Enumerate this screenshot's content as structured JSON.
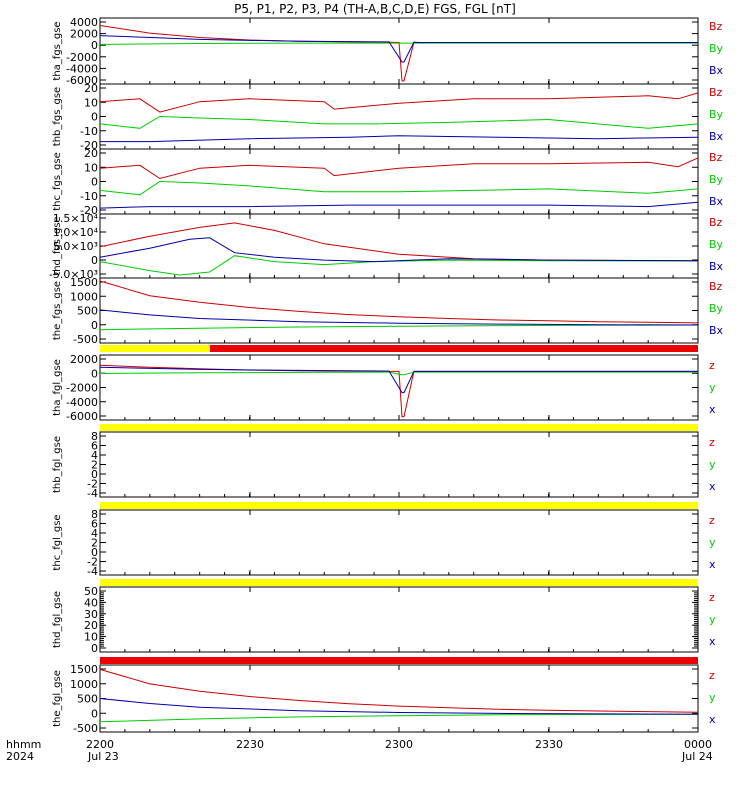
{
  "title": "P5, P1, P2, P3, P4 (TH-A,B,C,D,E) FGS, FGL [nT]",
  "colors": {
    "z": "#cc0000",
    "y": "#00cc00",
    "x": "#0000aa",
    "yellow": "#ffff00",
    "red": "#ee0000"
  },
  "time_axis": {
    "ticks": [
      "2200",
      "2230",
      "2300",
      "2330",
      "0000"
    ],
    "dates": [
      "Jul 23",
      "Jul 24"
    ],
    "hhmm_label": "hhmm",
    "year_label": "2024"
  },
  "panels": [
    {
      "ylabel": "tha_fgs_gse",
      "yticks": [
        "4000",
        "2000",
        "0",
        "-2000",
        "-4000",
        "-6000"
      ],
      "ylim": [
        -6500,
        4000
      ],
      "legend": [
        "Bz",
        "By",
        "Bx"
      ],
      "status_bar": null
    },
    {
      "ylabel": "thb_fgs_gse",
      "yticks": [
        "20",
        "10",
        "0",
        "-10",
        "-20"
      ],
      "ylim": [
        -22,
        22
      ],
      "legend": [
        "Bz",
        "By",
        "Bx"
      ],
      "status_bar": null
    },
    {
      "ylabel": "thc_fgs_gse",
      "yticks": [
        "20",
        "10",
        "0",
        "-10",
        "-20"
      ],
      "ylim": [
        -22,
        22
      ],
      "legend": [
        "Bz",
        "By",
        "Bx"
      ],
      "status_bar": null
    },
    {
      "ylabel": "thd_fgs_gse",
      "yticks": [
        "1.5×10⁴",
        "1.0×10⁴",
        "5.0×10³",
        "0",
        "-5.0×10³"
      ],
      "ylim": [
        -5500,
        16000
      ],
      "legend": [
        "Bz",
        "By",
        "Bx"
      ],
      "status_bar": null
    },
    {
      "ylabel": "the_fgs_gse",
      "yticks": [
        "1500",
        "1000",
        "500",
        "0",
        "-500"
      ],
      "ylim": [
        -600,
        1600
      ],
      "legend": [
        "Bz",
        "By",
        "Bx"
      ],
      "status_bar": null
    },
    {
      "ylabel": "tha_fgl_gse",
      "yticks": [
        "2000",
        "0",
        "-2000",
        "-4000",
        "-6000"
      ],
      "ylim": [
        -7000,
        2500
      ],
      "legend": [
        "z",
        "y",
        "x"
      ],
      "status_bar": "yellow-red"
    },
    {
      "ylabel": "thb_fgl_gse",
      "yticks": [
        "8",
        "6",
        "4",
        "2",
        "0",
        "-2",
        "-4"
      ],
      "ylim": [
        -5,
        9
      ],
      "legend": [
        "z",
        "y",
        "x"
      ],
      "status_bar": "yellow"
    },
    {
      "ylabel": "thc_fgl_gse",
      "yticks": [
        "8",
        "6",
        "4",
        "2",
        "0",
        "-2",
        "-4"
      ],
      "ylim": [
        -5,
        9
      ],
      "legend": [
        "z",
        "y",
        "x"
      ],
      "status_bar": "yellow"
    },
    {
      "ylabel": "thd_fgl_gse",
      "yticks": [
        "50",
        "40",
        "30",
        "20",
        "10",
        "0"
      ],
      "ylim": [
        -3,
        53
      ],
      "legend": [
        "z",
        "y",
        "x"
      ],
      "status_bar": "yellow"
    },
    {
      "ylabel": "the_fgl_gse",
      "yticks": [
        "1500",
        "1000",
        "500",
        "0",
        "-500"
      ],
      "ylim": [
        -600,
        1700
      ],
      "legend": [
        "z",
        "y",
        "x"
      ],
      "status_bar": "red"
    }
  ],
  "chart_data": {
    "type": "line",
    "title": "P5, P1, P2, P3, P4 (TH-A,B,C,D,E) FGS, FGL [nT]",
    "x_range": [
      "2024-07-23 22:00",
      "2024-07-24 00:00"
    ],
    "x_units": "minutes after 22:00 Jul 23 2024",
    "panels": [
      {
        "name": "tha_fgs_gse",
        "series": [
          {
            "name": "Bz",
            "x": [
              0,
              10,
              20,
              30,
              40,
              50,
              58,
              60,
              60.6,
              61,
              63,
              64,
              70,
              90,
              120
            ],
            "y": [
              2800,
              1600,
              900,
              500,
              300,
              200,
              150,
              100,
              -6000,
              -6000,
              100,
              100,
              100,
              100,
              100
            ]
          },
          {
            "name": "By",
            "x": [
              0,
              20,
              40,
              58,
              60.6,
              61,
              63,
              64,
              90,
              120
            ],
            "y": [
              -200,
              -50,
              0,
              0,
              0,
              0,
              0,
              0,
              0,
              0
            ]
          },
          {
            "name": "Bx",
            "x": [
              0,
              20,
              40,
              58,
              60.6,
              61,
              63,
              64,
              90,
              120
            ],
            "y": [
              1200,
              600,
              300,
              200,
              -3000,
              -3000,
              150,
              100,
              100,
              100
            ]
          }
        ]
      },
      {
        "name": "thb_fgs_gse",
        "series": [
          {
            "name": "Bz",
            "x": [
              0,
              8,
              12,
              20,
              30,
              45,
              47,
              60,
              75,
              90,
              110,
              116,
              120
            ],
            "y": [
              10,
              12,
              3,
              10,
              12,
              10,
              5,
              9,
              12,
              12,
              14,
              12,
              16
            ]
          },
          {
            "name": "By",
            "x": [
              0,
              8,
              12,
              20,
              30,
              45,
              55,
              70,
              90,
              110,
              120
            ],
            "y": [
              -5,
              -8,
              0,
              -1,
              -2,
              -5,
              -5,
              -4,
              -2,
              -8,
              -5
            ]
          },
          {
            "name": "Bx",
            "x": [
              0,
              10,
              30,
              50,
              60,
              80,
              100,
              120
            ],
            "y": [
              -17,
              -17,
              -15,
              -14,
              -13,
              -14,
              -15,
              -14
            ]
          }
        ]
      },
      {
        "name": "thc_fgs_gse",
        "series": [
          {
            "name": "Bz",
            "x": [
              0,
              8,
              12,
              20,
              30,
              45,
              47,
              60,
              75,
              90,
              110,
              116,
              120
            ],
            "y": [
              9,
              11,
              2,
              9,
              11,
              9,
              4,
              9,
              12,
              12,
              13,
              10,
              16
            ]
          },
          {
            "name": "By",
            "x": [
              0,
              8,
              12,
              20,
              30,
              45,
              60,
              75,
              90,
              110,
              120
            ],
            "y": [
              -6,
              -9,
              0,
              -1,
              -3,
              -7,
              -7,
              -6,
              -5,
              -8,
              -5
            ]
          },
          {
            "name": "Bx",
            "x": [
              0,
              10,
              30,
              50,
              70,
              90,
              110,
              120
            ],
            "y": [
              -18,
              -17,
              -17,
              -16,
              -16,
              -16,
              -17,
              -14
            ]
          }
        ]
      },
      {
        "name": "thd_fgs_gse",
        "series": [
          {
            "name": "Bz",
            "x": [
              0,
              10,
              20,
              27,
              35,
              45,
              60,
              75,
              90,
              120
            ],
            "y": [
              5000,
              8500,
              11500,
              13000,
              10500,
              6000,
              2500,
              1000,
              500,
              300
            ]
          },
          {
            "name": "By",
            "x": [
              0,
              10,
              16,
              22,
              27,
              35,
              45,
              55,
              70,
              90,
              120
            ],
            "y": [
              0,
              -3000,
              -4500,
              -3500,
              2000,
              0,
              -1000,
              0,
              500,
              300,
              200
            ]
          },
          {
            "name": "Bx",
            "x": [
              0,
              10,
              18,
              22,
              27,
              35,
              45,
              55,
              70,
              90,
              120
            ],
            "y": [
              1500,
              4500,
              7500,
              8000,
              3000,
              1500,
              500,
              0,
              1000,
              500,
              300
            ]
          }
        ]
      },
      {
        "name": "the_fgs_gse",
        "series": [
          {
            "name": "Bz",
            "x": [
              0,
              10,
              20,
              30,
              40,
              50,
              60,
              70,
              80,
              90,
              100,
              110,
              120
            ],
            "y": [
              1500,
              1000,
              780,
              600,
              470,
              360,
              290,
              230,
              180,
              150,
              120,
              100,
              80
            ]
          },
          {
            "name": "By",
            "x": [
              0,
              20,
              40,
              60,
              80,
              100,
              120
            ],
            "y": [
              -150,
              -100,
              -60,
              -30,
              -10,
              0,
              10
            ]
          },
          {
            "name": "Bx",
            "x": [
              0,
              10,
              20,
              40,
              60,
              80,
              100,
              120
            ],
            "y": [
              520,
              350,
              230,
              120,
              70,
              40,
              20,
              10
            ]
          }
        ]
      },
      {
        "name": "tha_fgl_gse",
        "series": [
          {
            "name": "z",
            "x": [
              0,
              10,
              20,
              30,
              40,
              50,
              58,
              60,
              60.6,
              61,
              63,
              64,
              70,
              90,
              120
            ],
            "y": [
              1000,
              700,
              500,
              300,
              200,
              150,
              100,
              100,
              -6500,
              -6500,
              100,
              100,
              100,
              100,
              100
            ]
          },
          {
            "name": "y",
            "x": [
              0,
              20,
              40,
              58,
              60.6,
              61,
              63,
              64,
              90,
              120
            ],
            "y": [
              -200,
              -100,
              -50,
              0,
              -400,
              -400,
              0,
              0,
              0,
              0
            ]
          },
          {
            "name": "x",
            "x": [
              0,
              20,
              40,
              58,
              60.6,
              61,
              63,
              64,
              90,
              120
            ],
            "y": [
              700,
              400,
              250,
              150,
              -3000,
              -3000,
              100,
              100,
              100,
              100
            ]
          }
        ]
      },
      {
        "name": "thb_fgl_gse",
        "series": []
      },
      {
        "name": "thc_fgl_gse",
        "series": []
      },
      {
        "name": "thd_fgl_gse",
        "series": []
      },
      {
        "name": "the_fgl_gse",
        "series": [
          {
            "name": "z",
            "x": [
              0,
              10,
              20,
              30,
              40,
              50,
              60,
              70,
              80,
              90,
              100,
              110,
              120
            ],
            "y": [
              1550,
              1050,
              800,
              620,
              480,
              370,
              290,
              230,
              180,
              150,
              120,
              100,
              80
            ]
          },
          {
            "name": "y",
            "x": [
              0,
              20,
              40,
              60,
              80,
              100,
              120
            ],
            "y": [
              -250,
              -150,
              -80,
              -40,
              -10,
              0,
              10
            ]
          },
          {
            "name": "x",
            "x": [
              0,
              10,
              20,
              40,
              60,
              80,
              100,
              120
            ],
            "y": [
              550,
              380,
              250,
              130,
              70,
              40,
              20,
              10
            ]
          }
        ]
      }
    ]
  }
}
